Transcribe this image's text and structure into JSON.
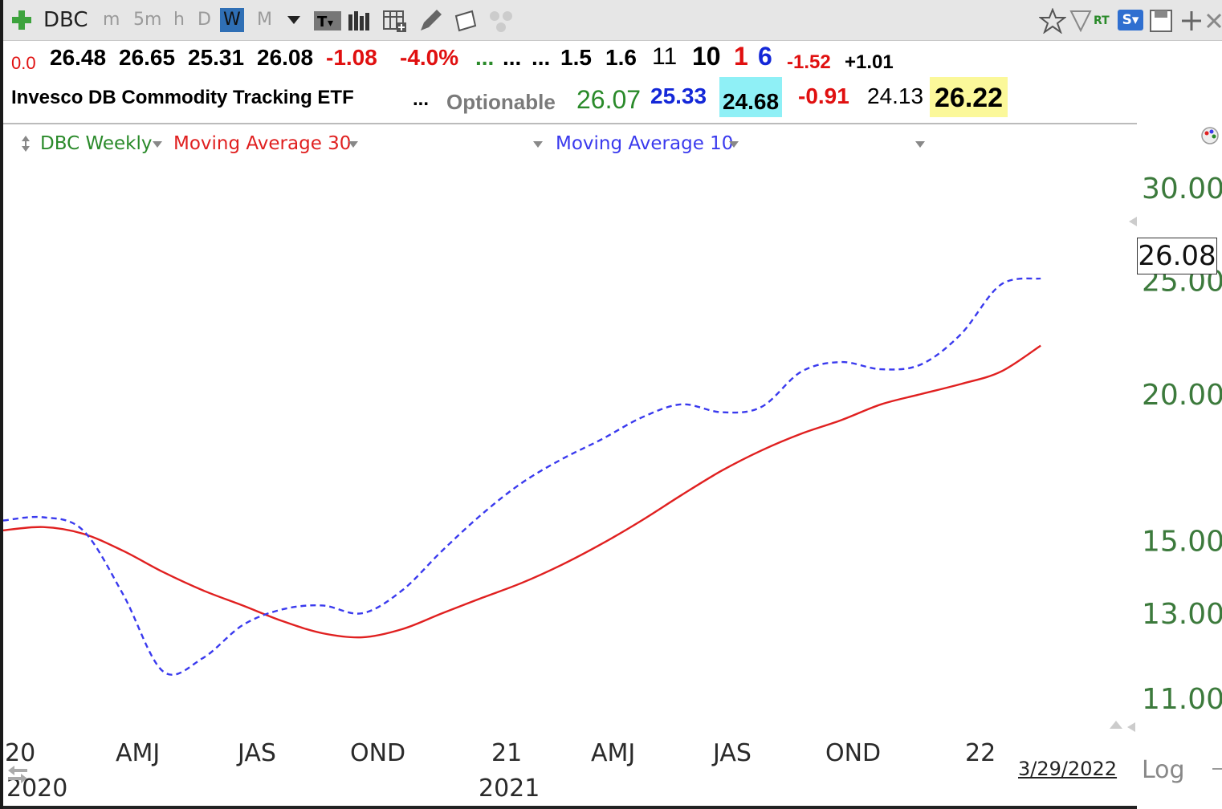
{
  "toolbar": {
    "symbol": "DBC",
    "intervals": [
      "m",
      "5m",
      "h",
      "D",
      "W",
      "M"
    ],
    "selected_interval": "W",
    "icons": [
      "add-icon",
      "dropdown-icon",
      "text-icon",
      "bars-icon",
      "table-icon",
      "pencil-icon",
      "note-icon",
      "dots-icon",
      "star-icon",
      "flag-icon",
      "rt-icon",
      "s-icon",
      "save-icon",
      "move-icon",
      "close-icon"
    ],
    "rt_label": "RT",
    "s_label": "S▾"
  },
  "quote_row1": {
    "change_small": "0.0",
    "open": "26.48",
    "high": "26.65",
    "low": "25.31",
    "close": "26.08",
    "change": "-1.08",
    "change_pct": "-4.0%",
    "dots1": "...",
    "dots2": "...",
    "dots3": "...",
    "v1": "1.5",
    "v2": "1.6",
    "v3": "11",
    "v4": "10",
    "v5": "1",
    "v6": "6",
    "v7": "-1.52",
    "v8": "+1.01"
  },
  "quote_row2": {
    "name": "Invesco DB Commodity Tracking ETF",
    "dots": "...",
    "optionable": "Optionable",
    "w1": "26.07",
    "w2": "25.33",
    "w3": "24.68",
    "w4": "-0.91",
    "w5": "24.13",
    "w6": "26.22"
  },
  "legend": {
    "series_label": "DBC Weekly",
    "ma30_label": "Moving Average 30",
    "ma10_label": "Moving Average 10"
  },
  "colors": {
    "ma30": "#e02020",
    "ma10": "#3a3aee",
    "axis_green": "#3c7a3c",
    "legend_green": "#2a8a2a"
  },
  "chart_data": {
    "type": "line",
    "y_scale": "log",
    "ylim": [
      10.2,
      32.0
    ],
    "yticks": [
      30.0,
      25.0,
      20.0,
      15.0,
      13.0,
      11.0
    ],
    "ytick_labels": [
      "30.00",
      "25.00",
      "20.00",
      "15.00",
      "13.00",
      "11.00"
    ],
    "xtick_labels": [
      "20",
      "AMJ",
      "JAS",
      "OND",
      "21",
      "AMJ",
      "JAS",
      "OND",
      "22"
    ],
    "year_labels": [
      "2020",
      "2021"
    ],
    "x_range": [
      "2020-01",
      "2022-04"
    ],
    "last_price": "26.08",
    "date_label": "3/29/2022",
    "scale_label": "Log",
    "series": [
      {
        "name": "Moving Average 30",
        "style": "solid",
        "x": [
          "2020-01",
          "2020-02",
          "2020-03",
          "2020-04",
          "2020-05",
          "2020-06",
          "2020-07",
          "2020-08",
          "2020-09",
          "2020-10",
          "2020-11",
          "2020-12",
          "2021-01",
          "2021-02",
          "2021-03",
          "2021-04",
          "2021-05",
          "2021-06",
          "2021-07",
          "2021-08",
          "2021-09",
          "2021-10",
          "2021-11",
          "2021-12",
          "2022-01",
          "2022-02",
          "2022-03"
        ],
        "values": [
          15.3,
          15.4,
          15.2,
          14.7,
          14.1,
          13.6,
          13.2,
          12.8,
          12.5,
          12.4,
          12.6,
          13.0,
          13.4,
          13.8,
          14.3,
          14.9,
          15.6,
          16.4,
          17.2,
          17.9,
          18.5,
          19.0,
          19.6,
          20.0,
          20.4,
          20.9,
          22.0
        ]
      },
      {
        "name": "Moving Average 10",
        "style": "dashed",
        "x": [
          "2020-01",
          "2020-02",
          "2020-03",
          "2020-04",
          "2020-05",
          "2020-06",
          "2020-07",
          "2020-08",
          "2020-09",
          "2020-10",
          "2020-11",
          "2020-12",
          "2021-01",
          "2021-02",
          "2021-03",
          "2021-04",
          "2021-05",
          "2021-06",
          "2021-07",
          "2021-08",
          "2021-09",
          "2021-10",
          "2021-11",
          "2021-12",
          "2022-01",
          "2022-02",
          "2022-03"
        ],
        "values": [
          15.6,
          15.7,
          15.3,
          13.5,
          11.6,
          11.9,
          12.7,
          13.1,
          13.2,
          13.0,
          13.6,
          14.7,
          15.8,
          16.8,
          17.6,
          18.3,
          19.1,
          19.6,
          19.3,
          19.5,
          20.9,
          21.3,
          21.0,
          21.2,
          22.5,
          24.8,
          25.1
        ]
      }
    ]
  }
}
